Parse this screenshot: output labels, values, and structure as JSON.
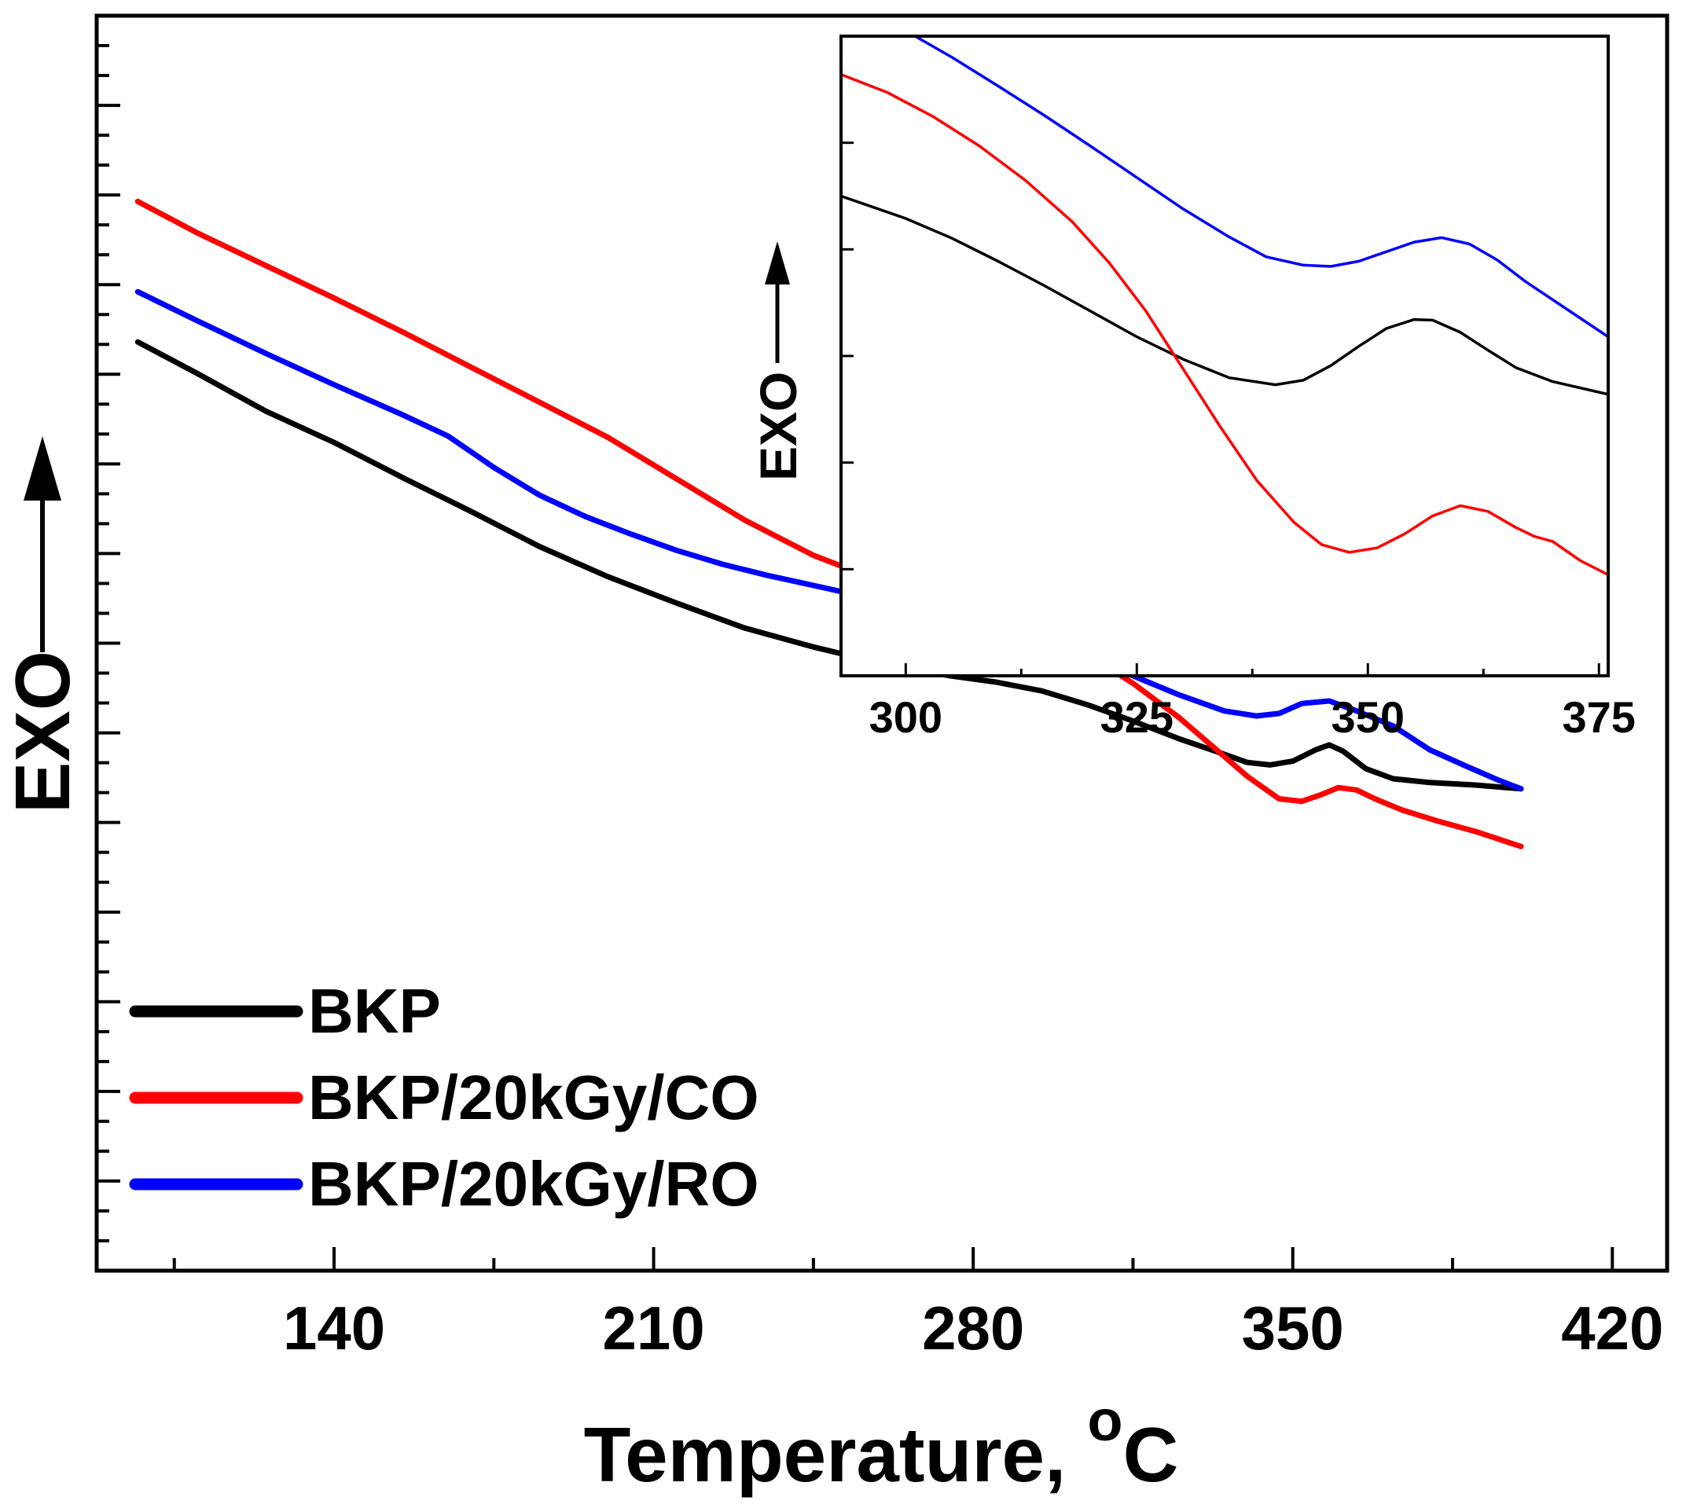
{
  "chart_data": [
    {
      "type": "line",
      "role": "main",
      "xlabel": "Temperature, ",
      "xlabel_superscript": "o",
      "xlabel_unit": "C",
      "ylabel": "EXO",
      "ylabel_arrow": "up",
      "xlim": [
        88,
        432
      ],
      "ylim": [
        0,
        1
      ],
      "xticks": [
        140,
        210,
        280,
        350,
        420
      ],
      "xtick_labels": [
        "140",
        "210",
        "280",
        "350",
        "420"
      ],
      "y_tick_labels_shown": false,
      "legend": {
        "position": "bottom-left",
        "entries": [
          "BKP",
          "BKP/20kGy/CO",
          "BKP/20kGy/RO"
        ]
      },
      "series": [
        {
          "name": "BKP",
          "color": "#000000",
          "points": [
            [
              97,
              0.74
            ],
            [
              110,
              0.715
            ],
            [
              125,
              0.685
            ],
            [
              140,
              0.66
            ],
            [
              155,
              0.632
            ],
            [
              170,
              0.605
            ],
            [
              185,
              0.577
            ],
            [
              200,
              0.553
            ],
            [
              215,
              0.532
            ],
            [
              230,
              0.512
            ],
            [
              245,
              0.497
            ],
            [
              260,
              0.484
            ],
            [
              275,
              0.474
            ],
            [
              285,
              0.469
            ],
            [
              295,
              0.462
            ],
            [
              305,
              0.451
            ],
            [
              315,
              0.438
            ],
            [
              325,
              0.424
            ],
            [
              333,
              0.414
            ],
            [
              340,
              0.405
            ],
            [
              345,
              0.403
            ],
            [
              350,
              0.406
            ],
            [
              355,
              0.415
            ],
            [
              358,
              0.419
            ],
            [
              361,
              0.414
            ],
            [
              366,
              0.4
            ],
            [
              372,
              0.392
            ],
            [
              380,
              0.389
            ],
            [
              390,
              0.387
            ],
            [
              400,
              0.384
            ]
          ]
        },
        {
          "name": "BKP/20kGy/CO",
          "color": "#ff0000",
          "points": [
            [
              97,
              0.852
            ],
            [
              110,
              0.827
            ],
            [
              125,
              0.801
            ],
            [
              140,
              0.775
            ],
            [
              155,
              0.748
            ],
            [
              170,
              0.72
            ],
            [
              185,
              0.692
            ],
            [
              200,
              0.664
            ],
            [
              215,
              0.631
            ],
            [
              230,
              0.598
            ],
            [
              245,
              0.57
            ],
            [
              260,
              0.549
            ],
            [
              275,
              0.532
            ],
            [
              285,
              0.521
            ],
            [
              295,
              0.508
            ],
            [
              305,
              0.491
            ],
            [
              315,
              0.468
            ],
            [
              325,
              0.441
            ],
            [
              333,
              0.416
            ],
            [
              340,
              0.394
            ],
            [
              347,
              0.376
            ],
            [
              352,
              0.374
            ],
            [
              356,
              0.379
            ],
            [
              360,
              0.385
            ],
            [
              364,
              0.383
            ],
            [
              368,
              0.376
            ],
            [
              374,
              0.367
            ],
            [
              382,
              0.358
            ],
            [
              390,
              0.35
            ],
            [
              400,
              0.338
            ]
          ]
        },
        {
          "name": "BKP/20kGy/RO",
          "color": "#0000ff",
          "points": [
            [
              97,
              0.78
            ],
            [
              110,
              0.757
            ],
            [
              125,
              0.731
            ],
            [
              140,
              0.706
            ],
            [
              155,
              0.682
            ],
            [
              165,
              0.665
            ],
            [
              175,
              0.64
            ],
            [
              185,
              0.618
            ],
            [
              195,
              0.601
            ],
            [
              205,
              0.587
            ],
            [
              215,
              0.574
            ],
            [
              225,
              0.563
            ],
            [
              235,
              0.554
            ],
            [
              245,
              0.546
            ],
            [
              255,
              0.538
            ],
            [
              265,
              0.531
            ],
            [
              275,
              0.523
            ],
            [
              285,
              0.514
            ],
            [
              295,
              0.503
            ],
            [
              305,
              0.489
            ],
            [
              315,
              0.474
            ],
            [
              325,
              0.459
            ],
            [
              335,
              0.446
            ],
            [
              342,
              0.442
            ],
            [
              347,
              0.444
            ],
            [
              352,
              0.452
            ],
            [
              358,
              0.454
            ],
            [
              364,
              0.446
            ],
            [
              372,
              0.434
            ],
            [
              380,
              0.415
            ],
            [
              388,
              0.402
            ],
            [
              395,
              0.391
            ],
            [
              400,
              0.384
            ]
          ]
        }
      ]
    },
    {
      "type": "line",
      "role": "inset",
      "ylabel": "EXO",
      "ylabel_arrow": "up",
      "xlim": [
        293,
        376
      ],
      "ylim": [
        0,
        1
      ],
      "xticks": [
        300,
        325,
        350,
        375
      ],
      "xtick_labels": [
        "300",
        "325",
        "350",
        "375"
      ],
      "y_tick_labels_shown": false,
      "series": [
        {
          "name": "BKP",
          "color": "#000000",
          "points": [
            [
              293,
              0.75
            ],
            [
              300,
              0.715
            ],
            [
              305,
              0.684
            ],
            [
              310,
              0.648
            ],
            [
              315,
              0.61
            ],
            [
              320,
              0.57
            ],
            [
              325,
              0.53
            ],
            [
              330,
              0.495
            ],
            [
              335,
              0.466
            ],
            [
              340,
              0.455
            ],
            [
              343,
              0.462
            ],
            [
              346,
              0.485
            ],
            [
              349,
              0.515
            ],
            [
              352,
              0.543
            ],
            [
              355,
              0.557
            ],
            [
              357,
              0.556
            ],
            [
              360,
              0.537
            ],
            [
              363,
              0.509
            ],
            [
              366,
              0.482
            ],
            [
              370,
              0.46
            ],
            [
              376,
              0.44
            ]
          ]
        },
        {
          "name": "BKP/20kGy/CO",
          "color": "#ff0000",
          "points": [
            [
              293,
              0.94
            ],
            [
              298,
              0.912
            ],
            [
              303,
              0.874
            ],
            [
              308,
              0.828
            ],
            [
              313,
              0.774
            ],
            [
              318,
              0.71
            ],
            [
              322,
              0.646
            ],
            [
              326,
              0.57
            ],
            [
              330,
              0.48
            ],
            [
              334,
              0.39
            ],
            [
              338,
              0.305
            ],
            [
              342,
              0.24
            ],
            [
              345,
              0.205
            ],
            [
              348,
              0.193
            ],
            [
              351,
              0.2
            ],
            [
              354,
              0.222
            ],
            [
              357,
              0.25
            ],
            [
              360,
              0.266
            ],
            [
              363,
              0.257
            ],
            [
              366,
              0.232
            ],
            [
              368,
              0.218
            ],
            [
              370,
              0.21
            ],
            [
              373,
              0.18
            ],
            [
              376,
              0.158
            ]
          ]
        },
        {
          "name": "BKP/20kGy/RO",
          "color": "#0000ff",
          "points": [
            [
              301,
              1.0
            ],
            [
              305,
              0.967
            ],
            [
              310,
              0.922
            ],
            [
              315,
              0.876
            ],
            [
              320,
              0.828
            ],
            [
              325,
              0.779
            ],
            [
              330,
              0.73
            ],
            [
              335,
              0.686
            ],
            [
              339,
              0.655
            ],
            [
              343,
              0.642
            ],
            [
              346,
              0.64
            ],
            [
              349,
              0.648
            ],
            [
              352,
              0.663
            ],
            [
              355,
              0.678
            ],
            [
              358,
              0.685
            ],
            [
              361,
              0.675
            ],
            [
              364,
              0.65
            ],
            [
              367,
              0.617
            ],
            [
              370,
              0.588
            ],
            [
              373,
              0.559
            ],
            [
              376,
              0.53
            ]
          ]
        }
      ]
    }
  ]
}
